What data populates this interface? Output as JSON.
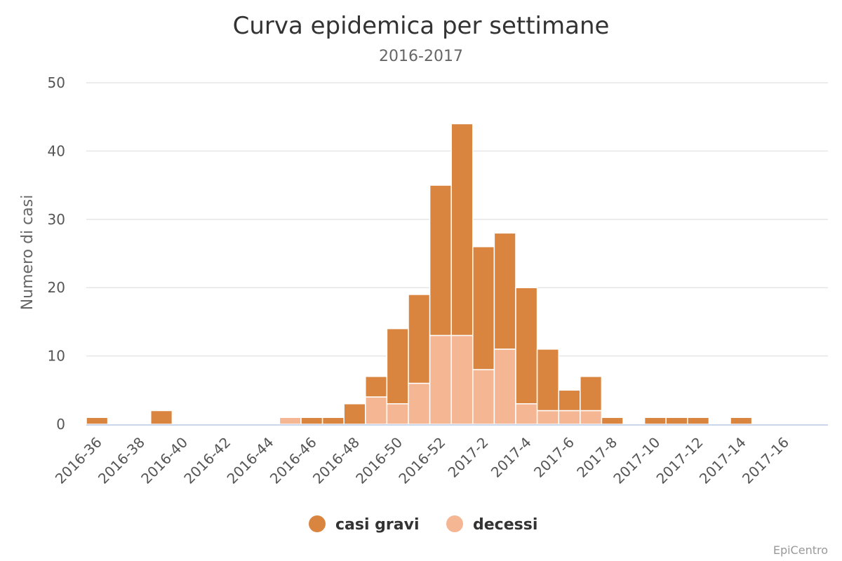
{
  "chart_data": {
    "type": "bar",
    "stacked": true,
    "title": "Curva epidemica per settimane",
    "subtitle": "2016-2017",
    "xlabel": "",
    "ylabel": "Numero di casi",
    "ylim": [
      0,
      50
    ],
    "yticks": [
      "0",
      "10",
      "20",
      "30",
      "40",
      "50"
    ],
    "categories": [
      "2016-36",
      "2016-37",
      "2016-38",
      "2016-39",
      "2016-40",
      "2016-41",
      "2016-42",
      "2016-43",
      "2016-44",
      "2016-45",
      "2016-46",
      "2016-47",
      "2016-48",
      "2016-49",
      "2016-50",
      "2016-51",
      "2016-52",
      "2017-1",
      "2017-2",
      "2017-3",
      "2017-4",
      "2017-5",
      "2017-6",
      "2017-7",
      "2017-8",
      "2017-9",
      "2017-10",
      "2017-11",
      "2017-12",
      "2017-13",
      "2017-14",
      "2017-15",
      "2017-16",
      "2017-17"
    ],
    "xtick_labels": [
      "2016-36",
      "2016-38",
      "2016-40",
      "2016-42",
      "2016-44",
      "2016-46",
      "2016-48",
      "2016-50",
      "2016-52",
      "2017-2",
      "2017-4",
      "2017-6",
      "2017-8",
      "2017-10",
      "2017-12",
      "2017-14",
      "2017-16"
    ],
    "series": [
      {
        "name": "casi gravi",
        "color": "#d98540",
        "values": [
          1,
          0,
          0,
          2,
          0,
          0,
          0,
          0,
          0,
          0,
          1,
          1,
          3,
          3,
          11,
          13,
          22,
          31,
          18,
          17,
          17,
          9,
          3,
          5,
          1,
          0,
          1,
          1,
          1,
          0,
          1,
          0,
          0,
          0
        ]
      },
      {
        "name": "decessi",
        "color": "#f5b694",
        "values": [
          0,
          0,
          0,
          0,
          0,
          0,
          0,
          0,
          0,
          1,
          0,
          0,
          0,
          4,
          3,
          6,
          13,
          13,
          8,
          11,
          3,
          2,
          2,
          2,
          0,
          0,
          0,
          0,
          0,
          0,
          0,
          0,
          0,
          0
        ]
      }
    ],
    "legend": "bottom-center",
    "grid": true
  },
  "credits": "EpiCentro"
}
